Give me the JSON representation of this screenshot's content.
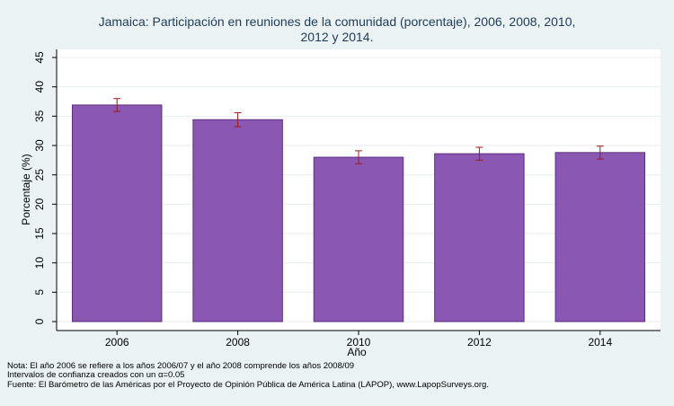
{
  "chart_data": {
    "type": "bar",
    "title_lines": [
      "Jamaica: Participación en reuniones de la comunidad (porcentaje), 2006, 2008, 2010,",
      "2012 y 2014."
    ],
    "categories": [
      "2006",
      "2008",
      "2010",
      "2012",
      "2014"
    ],
    "values": [
      36.9,
      34.4,
      28.0,
      28.6,
      28.8
    ],
    "ci_low": [
      35.8,
      33.2,
      26.9,
      27.5,
      27.7
    ],
    "ci_high": [
      38.0,
      35.6,
      29.1,
      29.7,
      29.9
    ],
    "xlabel": "Año",
    "ylabel": "Porcentaje (%)",
    "ylim": [
      0,
      45
    ],
    "yticks": [
      0,
      5,
      10,
      15,
      20,
      25,
      30,
      35,
      40,
      45
    ],
    "grid": true,
    "bar_color": "#8a58b2",
    "bar_edge_color": "#5a2d7d",
    "errorbar_color": "#9b1b1b",
    "notes": [
      "Nota: El año 2006 se refiere a los años 2006/07 y el año 2008 comprende los años 2008/09",
      "Intervalos de confianza creados con un α=0.05",
      "Fuente: El Barómetro de las Américas por el Proyecto de Opinión Pública de América Latina (LAPOP), www.LapopSurveys.org."
    ]
  }
}
